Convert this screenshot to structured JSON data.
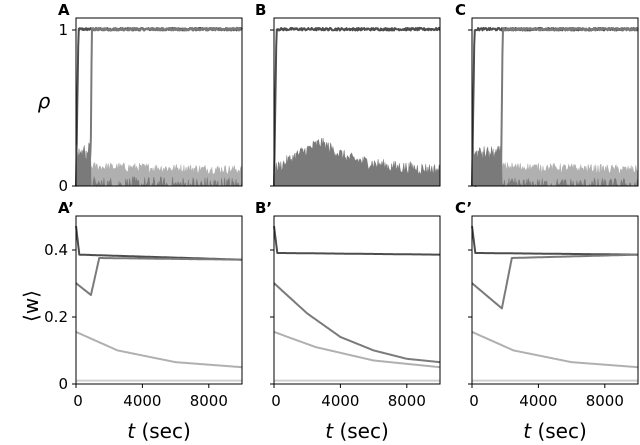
{
  "chart_data": {
    "type": "line",
    "layout": "2x3 grid of line plots",
    "colors": {
      "dark": "#4d4d4d",
      "mid": "#7a7a7a",
      "light": "#b0b0b0",
      "lighter": "#d0d0d0"
    },
    "rows": [
      {
        "id": "rho",
        "ylabel": "ρ",
        "ylim": [
          0,
          1.05
        ],
        "yticks": [
          0,
          1
        ],
        "ytick_labels": [
          "0",
          "1"
        ]
      },
      {
        "id": "w",
        "ylabel": "⟨w⟩",
        "ylim": [
          0,
          0.5
        ],
        "yticks": [
          0,
          0.2,
          0.4
        ],
        "ytick_labels": [
          "0",
          "0.2",
          "0.4"
        ]
      }
    ],
    "xlabel_var": "t",
    "xlabel_unit": "(sec)",
    "xlim": [
      0,
      10000
    ],
    "xticks": [
      0,
      4000,
      8000
    ],
    "xtick_labels": [
      "0",
      "4000",
      "8000"
    ],
    "columns": [
      {
        "rho_label": "A",
        "w_label": "A’",
        "switch_time": 900,
        "rho_series": [
          {
            "name": "plateau",
            "color": "dark",
            "points": [
              [
                0,
                0
              ],
              [
                150,
                0.98
              ],
              [
                10000,
                0.98
              ]
            ],
            "noise": 0.008
          },
          {
            "name": "switching",
            "color": "mid",
            "points": [
              [
                0,
                0
              ],
              [
                800,
                0.05
              ],
              [
                900,
                0.3
              ],
              [
                950,
                0.98
              ],
              [
                10000,
                0.98
              ]
            ],
            "noise": 0.008
          },
          {
            "name": "background-a",
            "color": "light",
            "fill": true,
            "points": [
              [
                0,
                0.18
              ],
              [
                900,
                0.2
              ],
              [
                900,
                0.12
              ],
              [
                10000,
                0.1
              ]
            ],
            "noise": 0.03
          },
          {
            "name": "background-b",
            "color": "mid",
            "fill": true,
            "points": [
              [
                0,
                0.2
              ],
              [
                900,
                0.22
              ],
              [
                900,
                0
              ],
              [
                10000,
                0
              ]
            ],
            "noise": 0.06
          }
        ],
        "w_series": [
          {
            "name": "top",
            "color": "dark",
            "points": [
              [
                0,
                0.47
              ],
              [
                200,
                0.385
              ],
              [
                10000,
                0.37
              ]
            ]
          },
          {
            "name": "middle",
            "color": "mid",
            "points": [
              [
                0,
                0.3
              ],
              [
                900,
                0.265
              ],
              [
                1400,
                0.375
              ],
              [
                10000,
                0.37
              ]
            ]
          },
          {
            "name": "lower",
            "color": "light",
            "points": [
              [
                0,
                0.155
              ],
              [
                2500,
                0.1
              ],
              [
                6000,
                0.065
              ],
              [
                10000,
                0.05
              ]
            ]
          },
          {
            "name": "baseline",
            "color": "lighter",
            "points": [
              [
                0,
                0.01
              ],
              [
                10000,
                0.01
              ]
            ]
          }
        ]
      },
      {
        "rho_label": "B",
        "w_label": "B’",
        "switch_time": null,
        "rho_series": [
          {
            "name": "plateau",
            "color": "dark",
            "points": [
              [
                0,
                0
              ],
              [
                150,
                0.98
              ],
              [
                10000,
                0.98
              ]
            ],
            "noise": 0.008
          },
          {
            "name": "background",
            "color": "mid",
            "fill": true,
            "points": [
              [
                0,
                0.1
              ],
              [
                1500,
                0.2
              ],
              [
                2800,
                0.27
              ],
              [
                4500,
                0.17
              ],
              [
                7000,
                0.12
              ],
              [
                10000,
                0.1
              ]
            ],
            "noise": 0.04
          }
        ],
        "w_series": [
          {
            "name": "top",
            "color": "dark",
            "points": [
              [
                0,
                0.47
              ],
              [
                200,
                0.39
              ],
              [
                10000,
                0.385
              ]
            ]
          },
          {
            "name": "middle",
            "color": "mid",
            "points": [
              [
                0,
                0.3
              ],
              [
                2000,
                0.21
              ],
              [
                4000,
                0.14
              ],
              [
                6000,
                0.1
              ],
              [
                8000,
                0.075
              ],
              [
                10000,
                0.065
              ]
            ]
          },
          {
            "name": "lower",
            "color": "light",
            "points": [
              [
                0,
                0.155
              ],
              [
                2500,
                0.11
              ],
              [
                6000,
                0.07
              ],
              [
                10000,
                0.05
              ]
            ]
          },
          {
            "name": "baseline",
            "color": "lighter",
            "points": [
              [
                0,
                0.01
              ],
              [
                10000,
                0.01
              ]
            ]
          }
        ]
      },
      {
        "rho_label": "C",
        "w_label": "C’",
        "switch_time": 1800,
        "rho_series": [
          {
            "name": "plateau",
            "color": "dark",
            "points": [
              [
                0,
                0
              ],
              [
                150,
                0.98
              ],
              [
                10000,
                0.98
              ]
            ],
            "noise": 0.008
          },
          {
            "name": "switching",
            "color": "mid",
            "points": [
              [
                0,
                0
              ],
              [
                1750,
                0.05
              ],
              [
                1850,
                0.98
              ],
              [
                10000,
                0.98
              ]
            ],
            "noise": 0.008
          },
          {
            "name": "background-a",
            "color": "light",
            "fill": true,
            "points": [
              [
                0,
                0.18
              ],
              [
                1800,
                0.2
              ],
              [
                1800,
                0.12
              ],
              [
                10000,
                0.1
              ]
            ],
            "noise": 0.03
          },
          {
            "name": "background-b",
            "color": "mid",
            "fill": true,
            "points": [
              [
                0,
                0.2
              ],
              [
                1800,
                0.2
              ],
              [
                1800,
                0
              ],
              [
                10000,
                0
              ]
            ],
            "noise": 0.05
          }
        ],
        "w_series": [
          {
            "name": "top",
            "color": "dark",
            "points": [
              [
                0,
                0.47
              ],
              [
                200,
                0.39
              ],
              [
                10000,
                0.385
              ]
            ]
          },
          {
            "name": "middle",
            "color": "mid",
            "points": [
              [
                0,
                0.3
              ],
              [
                1800,
                0.225
              ],
              [
                2400,
                0.375
              ],
              [
                10000,
                0.385
              ]
            ]
          },
          {
            "name": "lower",
            "color": "light",
            "points": [
              [
                0,
                0.155
              ],
              [
                2500,
                0.1
              ],
              [
                6000,
                0.065
              ],
              [
                10000,
                0.05
              ]
            ]
          },
          {
            "name": "baseline",
            "color": "lighter",
            "points": [
              [
                0,
                0.01
              ],
              [
                10000,
                0.01
              ]
            ]
          }
        ]
      }
    ]
  }
}
